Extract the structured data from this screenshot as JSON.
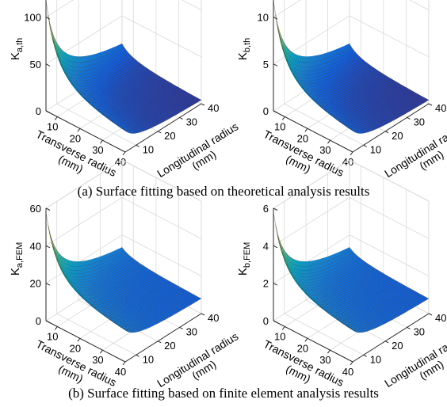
{
  "captions": {
    "a": "(a)  Surface fitting based on theoretical analysis results",
    "b": "(b)  Surface fitting based on finite element analysis results"
  },
  "colors": {
    "axis": "#262626",
    "grid": "#d9d9d9",
    "colormap": [
      "#352a87",
      "#0f5cdd",
      "#1481d6",
      "#06a4ca",
      "#2eb7a4",
      "#87bf77",
      "#d1bb59",
      "#fec832",
      "#f9fb0e"
    ]
  },
  "chart_data": [
    {
      "type": "surface",
      "panel": "a",
      "zlabel_main": "K",
      "zlabel_sub": "a,th",
      "xlabel": [
        "Transverse radius",
        "(mm)"
      ],
      "ylabel": [
        "Longitudinal radius",
        "(mm)"
      ],
      "xlim": [
        5,
        40
      ],
      "ylim": [
        5,
        40
      ],
      "zlim": [
        0,
        120
      ],
      "xticks": [
        "10",
        "20",
        "30",
        "40"
      ],
      "yticks": [
        "10",
        "20",
        "30",
        "40"
      ],
      "zticks": [
        "0",
        "50",
        "100"
      ],
      "z_corner_max": 118,
      "z_edge_x": 25,
      "z_edge_y": 22,
      "z_far": 4
    },
    {
      "type": "surface",
      "panel": "a",
      "zlabel_main": "K",
      "zlabel_sub": "b,th",
      "xlabel": [
        "Transverse radius",
        "(mm)"
      ],
      "ylabel": [
        "Longitudinal radius",
        "(mm)"
      ],
      "xlim": [
        5,
        40
      ],
      "ylim": [
        5,
        40
      ],
      "zlim": [
        0,
        12
      ],
      "xticks": [
        "10",
        "20",
        "30",
        "40"
      ],
      "yticks": [
        "10",
        "20",
        "30",
        "40"
      ],
      "zticks": [
        "0",
        "5",
        "10"
      ],
      "z_corner_max": 11.8,
      "z_edge_x": 2.5,
      "z_edge_y": 2.2,
      "z_far": 0.4
    },
    {
      "type": "surface",
      "panel": "b",
      "zlabel_main": "K",
      "zlabel_sub": "a,FEM",
      "xlabel": [
        "Transverse radius",
        "(mm)"
      ],
      "ylabel": [
        "Longitudinal radius",
        "(mm)"
      ],
      "xlim": [
        5,
        40
      ],
      "ylim": [
        5,
        40
      ],
      "zlim": [
        0,
        60
      ],
      "xticks": [
        "10",
        "20",
        "30",
        "40"
      ],
      "yticks": [
        "10",
        "20",
        "30",
        "40"
      ],
      "zticks": [
        "0",
        "20",
        "40",
        "60"
      ],
      "z_corner_max": 58,
      "z_edge_x": 18,
      "z_edge_y": 14,
      "z_far": 8
    },
    {
      "type": "surface",
      "panel": "b",
      "zlabel_main": "K",
      "zlabel_sub": "b,FEM",
      "xlabel": [
        "Transverse radius",
        "(mm)"
      ],
      "ylabel": [
        "Longitudinal radius",
        "(mm)"
      ],
      "xlim": [
        5,
        40
      ],
      "ylim": [
        5,
        40
      ],
      "zlim": [
        0,
        6
      ],
      "xticks": [
        "10",
        "20",
        "30",
        "40"
      ],
      "yticks": [
        "10",
        "20",
        "30",
        "40"
      ],
      "zticks": [
        "0",
        "2",
        "4",
        "6"
      ],
      "z_corner_max": 5.8,
      "z_edge_x": 1.8,
      "z_edge_y": 1.4,
      "z_far": 0.8
    }
  ]
}
